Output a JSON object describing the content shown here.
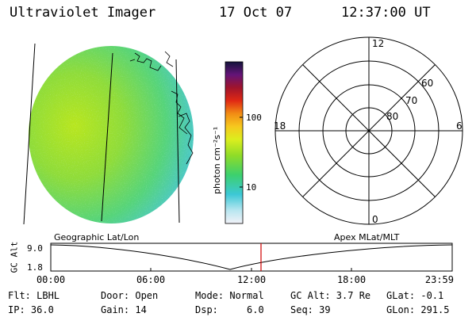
{
  "header": {
    "title": "Ultraviolet Imager",
    "date": "17 Oct 07",
    "time": "12:37:00 UT"
  },
  "colorbar": {
    "unit_label": "photon cm⁻²s⁻¹",
    "tick_labels": [
      "100",
      "10"
    ]
  },
  "polar_grid": {
    "hour_labels": {
      "top": "12",
      "left": "18",
      "right": "6",
      "bottom": "0"
    },
    "lat_labels": [
      "60",
      "70",
      "80"
    ]
  },
  "orbit_plot": {
    "left_title": "Geographic Lat/Lon",
    "right_title": "Apex MLat/MLT",
    "ylabel": "GC Alt",
    "y_ticks": [
      "9.0",
      "1.8"
    ],
    "x_ticks": [
      "00:00",
      "06:00",
      "12:00",
      "18:00",
      "23:59"
    ],
    "line_color": "#000000",
    "marker_color": "#d00000"
  },
  "info": [
    [
      "Flt: LBHL",
      "Door: Open",
      "Mode: Normal",
      "GC Alt: 3.7 Re",
      "GLat: -0.1"
    ],
    [
      "IP: 36.0",
      "Gain: 14",
      "Dsp:     6.0",
      "Seq: 39",
      "GLon: 291.5"
    ]
  ]
}
